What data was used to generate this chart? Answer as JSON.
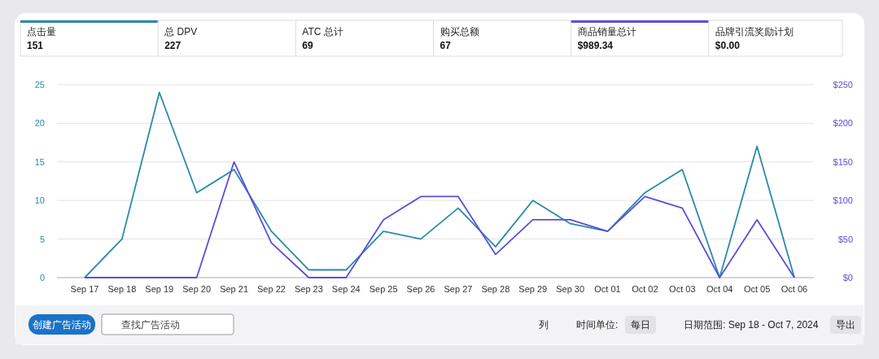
{
  "chart_data": [
    {
      "type": "other",
      "annotations": [
        "点击量",
        "151",
        "总 DPV",
        "227",
        "ATC 总计",
        "69",
        "购买总额",
        "67",
        "商品销量总计",
        "$989.34",
        "品牌引流奖励计划",
        "$0.00"
      ]
    },
    {
      "type": "line",
      "categories": [
        "Sep 17",
        "Sep 18",
        "Sep 19",
        "Sep 20",
        "Sep 21",
        "Sep 22",
        "Sep 23",
        "Sep 24",
        "Sep 25",
        "Sep 26",
        "Sep 27",
        "Sep 28",
        "Sep 29",
        "Sep 30",
        "Oct 01",
        "Oct 02",
        "Oct 03",
        "Oct 04",
        "Oct 05",
        "Oct 06"
      ],
      "series": [
        {
          "color": "#2a8aa8",
          "values": [
            0,
            5,
            24,
            11,
            14,
            6,
            1,
            1,
            6,
            5,
            9,
            4,
            10,
            7,
            6,
            11,
            14,
            0,
            17,
            0
          ]
        },
        {
          "color": "#5b4fd9",
          "axis": "y2",
          "values": [
            0,
            0,
            0,
            0,
            150,
            45,
            0,
            0,
            75,
            105,
            105,
            30,
            75,
            75,
            60,
            105,
            90,
            0,
            75,
            0
          ]
        }
      ],
      "ylim": [
        0,
        25
      ],
      "yticks": [
        0,
        5,
        10,
        15,
        20,
        25
      ],
      "y2lim": [
        0,
        250
      ],
      "y2ticks": [
        {
          "value": 0,
          "label": "$0"
        },
        {
          "value": 50,
          "label": "$50"
        },
        {
          "value": 100,
          "label": "$100"
        },
        {
          "value": 150,
          "label": "$150"
        },
        {
          "value": 200,
          "label": "$200"
        },
        {
          "value": 250,
          "label": "$250"
        }
      ],
      "grid": "y",
      "marker": "none",
      "line_style": "solid"
    },
    {
      "type": "other",
      "annotations": [
        "创建广告活动",
        "查找广告活动",
        "列",
        "时间单位:",
        "每日",
        "日期范围: Sep 18 - Oct 7, 2024",
        "导出"
      ]
    }
  ]
}
